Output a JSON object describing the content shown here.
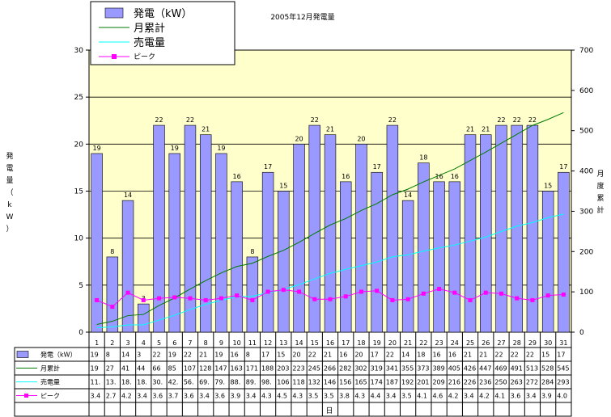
{
  "chart_data": {
    "type": "bar",
    "title": "2005年12月発電量",
    "xlabel": "日",
    "ylabel": "発電量（kW）",
    "y2label": "月度累計",
    "ylim": [
      0,
      30
    ],
    "y2lim": [
      0,
      700
    ],
    "yticks": [
      "0",
      "5",
      "10",
      "15",
      "20",
      "25",
      "30"
    ],
    "y2ticks": [
      "0",
      "100",
      "200",
      "300",
      "400",
      "500",
      "600",
      "700"
    ],
    "categories": [
      "1",
      "2",
      "3",
      "4",
      "5",
      "6",
      "7",
      "8",
      "9",
      "10",
      "11",
      "12",
      "13",
      "14",
      "15",
      "16",
      "17",
      "18",
      "19",
      "20",
      "21",
      "22",
      "23",
      "24",
      "25",
      "26",
      "27",
      "28",
      "29",
      "30",
      "31"
    ],
    "legend_position": "top-left",
    "colors": {
      "bar": "#9999ff",
      "cumulative": "#007a00",
      "sold": "#00ffff",
      "peak": "#ff00ff",
      "plot_bg": "#ffffcc"
    },
    "series": [
      {
        "name": "発電（kW）",
        "type": "bar",
        "axis": "left",
        "values": [
          19,
          8,
          14,
          3,
          22,
          19,
          22,
          21,
          19,
          16,
          8,
          17,
          15,
          20,
          22,
          21,
          16,
          20,
          17,
          22,
          14,
          18,
          16,
          16,
          21,
          21,
          22,
          22,
          22,
          15,
          17
        ],
        "table_labels": [
          "19",
          "8",
          "14",
          "3",
          "22",
          "19",
          "22",
          "21",
          "19",
          "16",
          "8",
          "17",
          "15",
          "20",
          "22",
          "21",
          "16",
          "20",
          "17",
          "22",
          "14",
          "18",
          "16",
          "16",
          "21",
          "21",
          "22",
          "22",
          "22",
          "15",
          "17"
        ]
      },
      {
        "name": "月累計",
        "type": "line",
        "axis": "right",
        "values": [
          19,
          27,
          41,
          44,
          66,
          85,
          107,
          128,
          147,
          163,
          171,
          188,
          203,
          223,
          245,
          266,
          282,
          302,
          319,
          341,
          355,
          373,
          389,
          405,
          426,
          447,
          469,
          491,
          513,
          528,
          545
        ],
        "table_labels": [
          "19",
          "27",
          "41",
          "44",
          "66",
          "85",
          "107",
          "128",
          "147",
          "163",
          "171",
          "188",
          "203",
          "223",
          "245",
          "266",
          "282",
          "302",
          "319",
          "341",
          "355",
          "373",
          "389",
          "405",
          "426",
          "447",
          "469",
          "491",
          "513",
          "528",
          "545"
        ]
      },
      {
        "name": "売電量",
        "type": "line",
        "axis": "right",
        "values": [
          11,
          13,
          18,
          18,
          30,
          42,
          56,
          69,
          79,
          88,
          89,
          98,
          106,
          118,
          132,
          146,
          156,
          165,
          174,
          187,
          192,
          201,
          209,
          216,
          226,
          236,
          250,
          263,
          272,
          284,
          293
        ],
        "table_labels": [
          "11.",
          "13.",
          "18.",
          "18.",
          "30.",
          "42.",
          "56.",
          "69.",
          "79.",
          "88.",
          "89.",
          "98.",
          "106",
          "118",
          "132",
          "146",
          "156",
          "165",
          "174",
          "187",
          "192",
          "201",
          "209",
          "216",
          "226",
          "236",
          "250",
          "263",
          "272",
          "284",
          "293"
        ]
      },
      {
        "name": "ピーク",
        "type": "line",
        "axis": "left",
        "values": [
          3.4,
          2.7,
          4.2,
          3.4,
          3.6,
          3.7,
          3.6,
          3.4,
          3.6,
          3.9,
          3.4,
          4.3,
          4.5,
          4.3,
          3.5,
          3.5,
          3.8,
          4.3,
          4.4,
          3.4,
          3.5,
          4.1,
          4.6,
          4.2,
          3.4,
          4.2,
          4.1,
          3.6,
          3.4,
          3.9,
          4.0
        ],
        "table_labels": [
          "3.4",
          "2.7",
          "4.2",
          "3.4",
          "3.6",
          "3.7",
          "3.6",
          "3.4",
          "3.6",
          "3.9",
          "3.4",
          "4.3",
          "4.5",
          "4.3",
          "3.5",
          "3.5",
          "3.8",
          "4.3",
          "4.4",
          "3.4",
          "3.5",
          "4.1",
          "4.6",
          "4.2",
          "3.4",
          "4.2",
          "4.1",
          "3.6",
          "3.4",
          "3.9",
          "4.0"
        ]
      }
    ]
  }
}
